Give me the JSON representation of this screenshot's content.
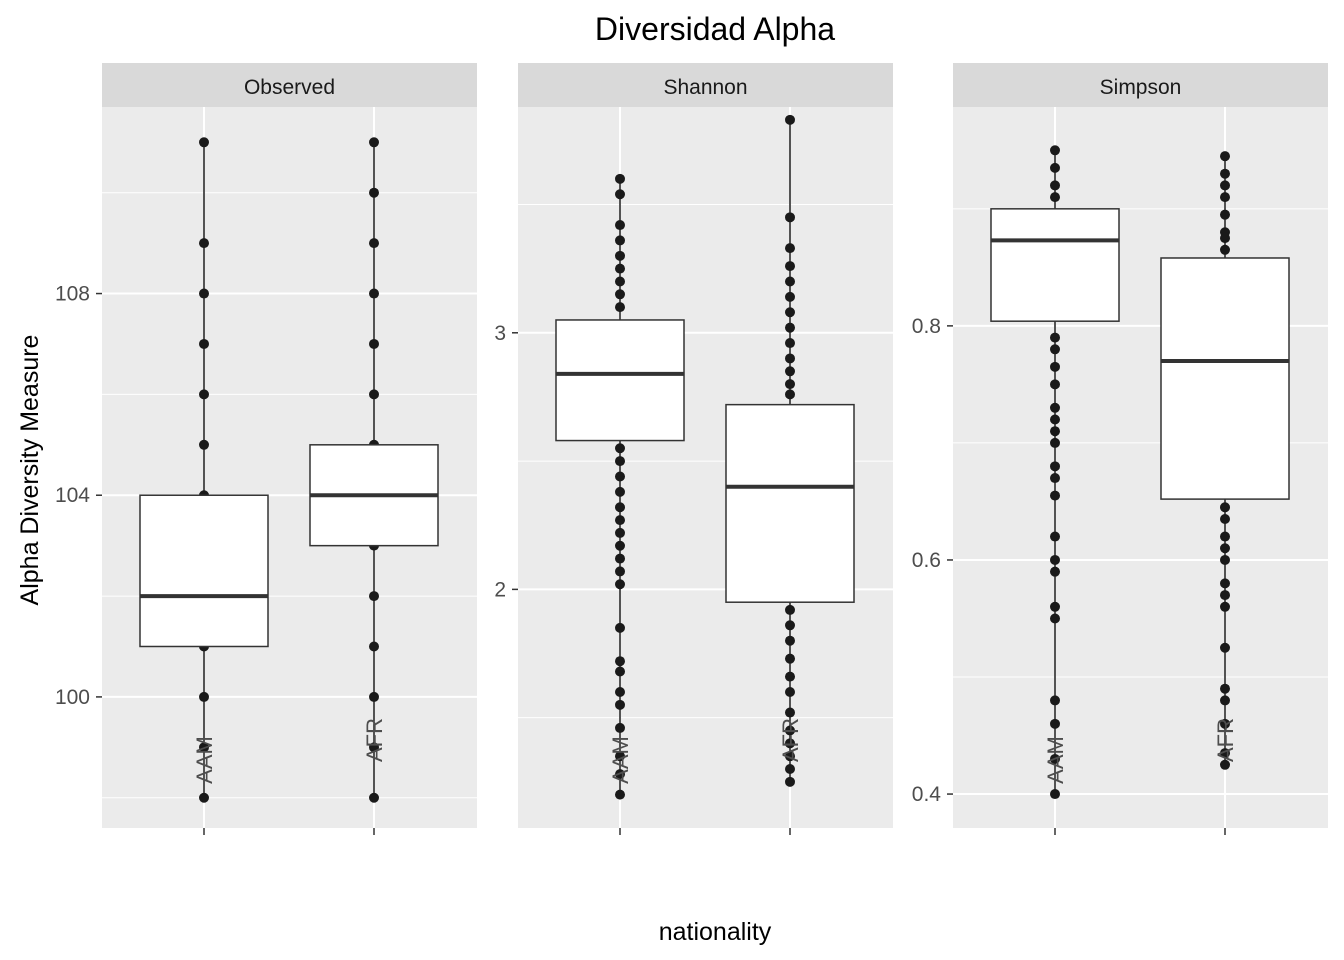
{
  "chart_data": {
    "type": "box",
    "title": "Diversidad Alpha",
    "xlabel": "nationality",
    "ylabel": "Alpha Diversity Measure",
    "categories": [
      "AAM",
      "AFR"
    ],
    "grid": true,
    "legend": "none",
    "colors": {
      "panel_bg": "#ebebeb",
      "strip_bg": "#d9d9d9",
      "grid": "#ffffff",
      "points": "#1a1a1a",
      "box_fill": "#ffffff",
      "box_line": "#333333"
    },
    "panels": [
      {
        "name": "Observed",
        "ylim": [
          97.4,
          111.7
        ],
        "yticks": [
          100,
          104,
          108
        ],
        "ytick_labels": [
          "100",
          "104",
          "108"
        ],
        "boxes": [
          {
            "category": "AAM",
            "q1": 101,
            "median": 102,
            "q3": 104,
            "whisker_low": 101,
            "whisker_high": 104,
            "points": [
              98,
              99,
              100,
              101,
              102,
              103,
              104,
              105,
              106,
              107,
              108,
              109,
              111
            ]
          },
          {
            "category": "AFR",
            "q1": 103,
            "median": 104,
            "q3": 105,
            "whisker_low": 103,
            "whisker_high": 105,
            "points": [
              98,
              99,
              100,
              101,
              102,
              103,
              104,
              105,
              106,
              107,
              108,
              109,
              110,
              111
            ]
          }
        ]
      },
      {
        "name": "Shannon",
        "ylim": [
          1.07,
          3.88
        ],
        "yticks": [
          2,
          3
        ],
        "ytick_labels": [
          "2",
          "3"
        ],
        "boxes": [
          {
            "category": "AAM",
            "q1": 2.58,
            "median": 2.84,
            "q3": 3.05,
            "whisker_low": 2.58,
            "whisker_high": 3.05,
            "points": [
              1.2,
              1.28,
              1.35,
              1.46,
              1.55,
              1.6,
              1.68,
              1.72,
              1.85,
              2.02,
              2.07,
              2.12,
              2.17,
              2.22,
              2.27,
              2.32,
              2.38,
              2.44,
              2.5,
              2.55,
              3.1,
              3.15,
              3.2,
              3.25,
              3.3,
              3.36,
              3.42,
              3.54,
              3.6
            ]
          },
          {
            "category": "AFR",
            "q1": 1.95,
            "median": 2.4,
            "q3": 2.72,
            "whisker_low": 1.95,
            "whisker_high": 2.72,
            "points": [
              1.25,
              1.3,
              1.35,
              1.4,
              1.45,
              1.52,
              1.6,
              1.66,
              1.73,
              1.8,
              1.86,
              1.92,
              2.76,
              2.8,
              2.85,
              2.9,
              2.96,
              3.02,
              3.08,
              3.14,
              3.2,
              3.26,
              3.33,
              3.45,
              3.83
            ]
          }
        ]
      },
      {
        "name": "Simpson",
        "ylim": [
          0.371,
          0.987
        ],
        "yticks": [
          0.4,
          0.6,
          0.8
        ],
        "ytick_labels": [
          "0.4",
          "0.6",
          "0.8"
        ],
        "boxes": [
          {
            "category": "AAM",
            "q1": 0.804,
            "median": 0.873,
            "q3": 0.9,
            "whisker_low": 0.804,
            "whisker_high": 0.9,
            "points": [
              0.4,
              0.43,
              0.46,
              0.48,
              0.55,
              0.56,
              0.59,
              0.6,
              0.62,
              0.655,
              0.67,
              0.68,
              0.7,
              0.71,
              0.72,
              0.73,
              0.75,
              0.765,
              0.78,
              0.79,
              0.91,
              0.92,
              0.935,
              0.95
            ]
          },
          {
            "category": "AFR",
            "q1": 0.652,
            "median": 0.77,
            "q3": 0.858,
            "whisker_low": 0.652,
            "whisker_high": 0.858,
            "points": [
              0.425,
              0.435,
              0.46,
              0.48,
              0.49,
              0.525,
              0.56,
              0.57,
              0.58,
              0.6,
              0.61,
              0.62,
              0.635,
              0.645,
              0.865,
              0.875,
              0.88,
              0.895,
              0.91,
              0.92,
              0.93,
              0.945
            ]
          }
        ]
      }
    ]
  }
}
